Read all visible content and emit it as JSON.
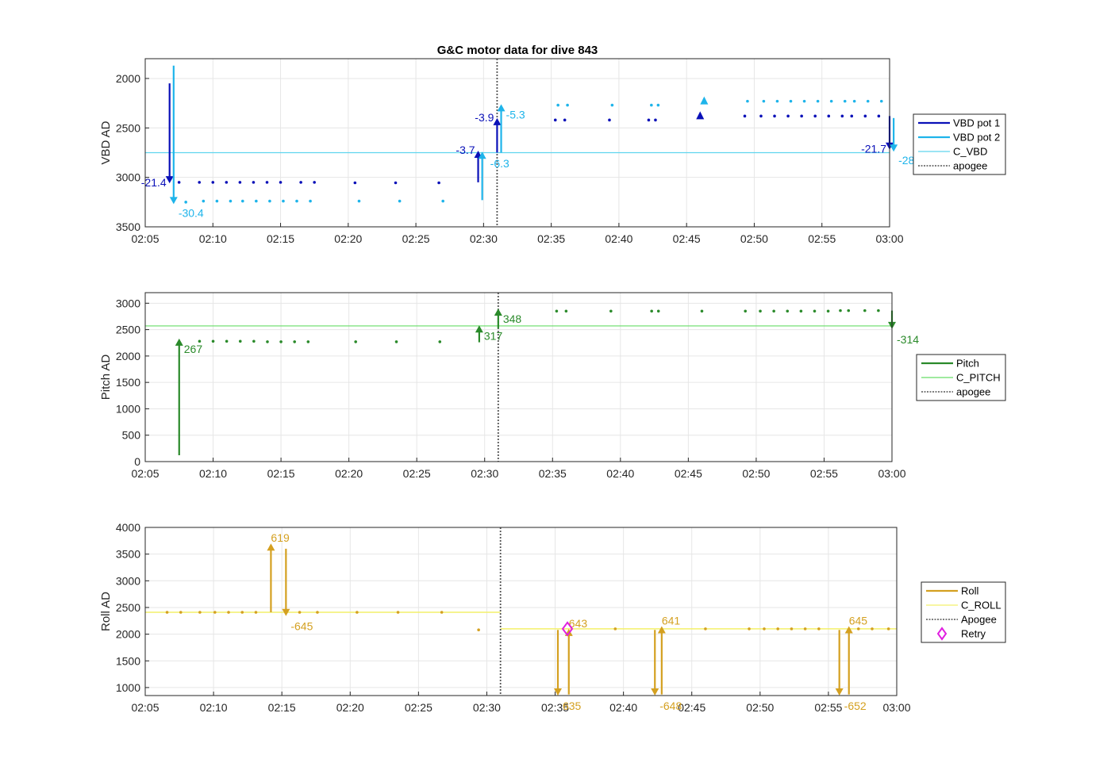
{
  "title": "G&C motor data for dive 843",
  "colors": {
    "vbd1": "#0a10b8",
    "vbd2": "#1eb4ea",
    "c_vbd": "#5fd5ee",
    "pitch": "#2a8a2a",
    "c_pitch": "#66dd66",
    "roll": "#d4a020",
    "c_roll": "#f4f06a",
    "apogee": "#555555",
    "retry": "#e020e0",
    "grid": "#e6e6e6",
    "axis": "#262626"
  },
  "chart_data": [
    {
      "type": "line",
      "id": "vbd",
      "ylabel": "VBD AD",
      "xlim": [
        "02:05",
        "03:00"
      ],
      "ylim": [
        3500,
        1800
      ],
      "y_reversed": true,
      "grid": true,
      "xticks": [
        "02:05",
        "02:10",
        "02:15",
        "02:20",
        "02:25",
        "02:30",
        "02:35",
        "02:40",
        "02:45",
        "02:50",
        "02:55",
        "03:00"
      ],
      "yticks": [
        2000,
        2500,
        3000,
        3500
      ],
      "apogee": "02:31",
      "legend_position": "outside-right",
      "legend": [
        {
          "label": "VBD pot 1",
          "style": "thick",
          "color": "#0a10b8"
        },
        {
          "label": "VBD pot 2",
          "style": "thick",
          "color": "#1eb4ea"
        },
        {
          "label": "C_VBD",
          "style": "thin",
          "color": "#5fd5ee"
        },
        {
          "label": "apogee",
          "style": "dotted",
          "color": "#555555"
        }
      ],
      "hlines": [
        {
          "name": "C_VBD",
          "y": 2750,
          "color": "#5fd5ee"
        }
      ],
      "series": [
        {
          "name": "VBD pot 1",
          "color": "#0a10b8",
          "x": [
            "02:07.5",
            "02:09",
            "02:10",
            "02:11",
            "02:12",
            "02:13",
            "02:14",
            "02:15",
            "02:16.5",
            "02:17.5",
            "02:20.5",
            "02:23.5",
            "02:26.7",
            "02:35.3",
            "02:36",
            "02:39.3",
            "02:42.2",
            "02:42.7",
            "02:49.3",
            "02:50.5",
            "02:51.5",
            "02:52.5",
            "02:53.5",
            "02:54.5",
            "02:55.5",
            "02:56.5",
            "02:57.2",
            "02:58.2",
            "02:59.2"
          ],
          "y": [
            3050,
            3050,
            3050,
            3050,
            3050,
            3050,
            3050,
            3050,
            3050,
            3050,
            3055,
            3055,
            3055,
            2420,
            2420,
            2420,
            2420,
            2420,
            2380,
            2380,
            2380,
            2380,
            2380,
            2380,
            2380,
            2380,
            2380,
            2380,
            2380
          ]
        },
        {
          "name": "VBD pot 2",
          "color": "#1eb4ea",
          "x": [
            "02:08",
            "02:09.3",
            "02:10.3",
            "02:11.3",
            "02:12.2",
            "02:13.2",
            "02:14.2",
            "02:15.2",
            "02:16.2",
            "02:17.2",
            "02:20.8",
            "02:23.8",
            "02:27",
            "02:35.5",
            "02:36.2",
            "02:39.5",
            "02:42.4",
            "02:42.9",
            "02:49.5",
            "02:50.7",
            "02:51.7",
            "02:52.7",
            "02:53.7",
            "02:54.7",
            "02:55.7",
            "02:56.7",
            "02:57.4",
            "02:58.4",
            "02:59.4"
          ],
          "y": [
            3250,
            3240,
            3240,
            3240,
            3240,
            3240,
            3240,
            3240,
            3240,
            3240,
            3240,
            3240,
            3240,
            2270,
            2270,
            2270,
            2270,
            2270,
            2230,
            2230,
            2230,
            2230,
            2230,
            2230,
            2230,
            2230,
            2230,
            2230,
            2230
          ]
        }
      ],
      "moves": [
        {
          "x": "02:06.8",
          "y0": 2050,
          "y1": 3060,
          "color": "#0a10b8",
          "label": "-21.4",
          "lpos": "left"
        },
        {
          "x": "02:07.1",
          "y0": 1870,
          "y1": 3270,
          "color": "#1eb4ea",
          "label": "-30.4",
          "lpos": "right"
        },
        {
          "x": "02:29.6",
          "y0": 3050,
          "y1": 2730,
          "color": "#0a10b8",
          "label": "-3.7",
          "lpos": "left"
        },
        {
          "x": "02:29.9",
          "y0": 3230,
          "y1": 2740,
          "color": "#1eb4ea",
          "label": "-6.3",
          "lpos": "below"
        },
        {
          "x": "02:31",
          "y0": 2750,
          "y1": 2400,
          "color": "#0a10b8",
          "label": "-3.9",
          "lpos": "left"
        },
        {
          "x": "02:31.3",
          "y0": 2750,
          "y1": 2260,
          "color": "#1eb4ea",
          "label": "-5.3",
          "lpos": "right"
        },
        {
          "x": "03:00",
          "y0": 2380,
          "y1": 2720,
          "color": "#0a10b8",
          "label": "-21.7",
          "lpos": "left"
        },
        {
          "x": "03:00.3",
          "y0": 2400,
          "y1": 2740,
          "color": "#1eb4ea",
          "label": "-28",
          "lpos": "right"
        }
      ],
      "markers": [
        {
          "x": "02:46",
          "y": 2380,
          "shape": "triangle-up",
          "color": "#0a10b8"
        },
        {
          "x": "02:46.3",
          "y": 2230,
          "shape": "triangle-up",
          "color": "#1eb4ea"
        }
      ]
    },
    {
      "type": "line",
      "id": "pitch",
      "ylabel": "Pitch AD",
      "xlim": [
        "02:05",
        "03:00"
      ],
      "ylim": [
        0,
        3200
      ],
      "grid": true,
      "xticks": [
        "02:05",
        "02:10",
        "02:15",
        "02:20",
        "02:25",
        "02:30",
        "02:35",
        "02:40",
        "02:45",
        "02:50",
        "02:55",
        "03:00"
      ],
      "yticks": [
        0,
        500,
        1000,
        1500,
        2000,
        2500,
        3000
      ],
      "apogee": "02:31",
      "legend_position": "outside-right",
      "legend": [
        {
          "label": "Pitch",
          "style": "thick",
          "color": "#2a8a2a"
        },
        {
          "label": "C_PITCH",
          "style": "thin",
          "color": "#66dd66"
        },
        {
          "label": "apogee",
          "style": "dotted",
          "color": "#555555"
        }
      ],
      "hlines": [
        {
          "name": "C_PITCH",
          "y": 2570,
          "color": "#66dd66"
        }
      ],
      "series": [
        {
          "name": "Pitch",
          "color": "#2a8a2a",
          "x": [
            "02:09",
            "02:10",
            "02:11",
            "02:12",
            "02:13",
            "02:14",
            "02:15",
            "02:16",
            "02:17",
            "02:20.5",
            "02:23.5",
            "02:26.7",
            "02:35.3",
            "02:36",
            "02:39.3",
            "02:42.3",
            "02:42.8",
            "02:46",
            "02:49.2",
            "02:50.3",
            "02:51.3",
            "02:52.3",
            "02:53.3",
            "02:54.3",
            "02:55.3",
            "02:56.2",
            "02:56.8",
            "02:58",
            "02:59"
          ],
          "y": [
            2280,
            2280,
            2280,
            2280,
            2280,
            2270,
            2270,
            2270,
            2270,
            2270,
            2270,
            2270,
            2850,
            2850,
            2850,
            2850,
            2850,
            2850,
            2850,
            2850,
            2850,
            2850,
            2850,
            2850,
            2850,
            2860,
            2860,
            2860,
            2860
          ]
        }
      ],
      "moves": [
        {
          "x": "02:07.5",
          "y0": 120,
          "y1": 2330,
          "color": "#2a8a2a",
          "label": "267",
          "lpos": "right-low"
        },
        {
          "x": "02:29.6",
          "y0": 2260,
          "y1": 2580,
          "color": "#2a8a2a",
          "label": "317",
          "lpos": "right-low"
        },
        {
          "x": "02:31",
          "y0": 2520,
          "y1": 2900,
          "color": "#2a8a2a",
          "label": "348",
          "lpos": "right-low"
        },
        {
          "x": "03:00",
          "y0": 2860,
          "y1": 2510,
          "color": "#2a8a2a",
          "label": "-314",
          "lpos": "right-low"
        }
      ],
      "markers": []
    },
    {
      "type": "line",
      "id": "roll",
      "ylabel": "Roll AD",
      "xlim": [
        "02:05",
        "03:00"
      ],
      "ylim": [
        850,
        4000
      ],
      "grid": true,
      "xticks": [
        "02:05",
        "02:10",
        "02:15",
        "02:20",
        "02:25",
        "02:30",
        "02:35",
        "02:40",
        "02:45",
        "02:50",
        "02:55",
        "03:00"
      ],
      "yticks": [
        1000,
        1500,
        2000,
        2500,
        3000,
        3500,
        4000
      ],
      "apogee": "02:31",
      "legend_position": "outside-right",
      "legend": [
        {
          "label": "Roll",
          "style": "thick",
          "color": "#d4a020"
        },
        {
          "label": "C_ROLL",
          "style": "thin",
          "color": "#f4f06a"
        },
        {
          "label": "Apogee",
          "style": "dotted",
          "color": "#555555"
        },
        {
          "label": "Retry",
          "style": "diamond",
          "color": "#e020e0"
        }
      ],
      "hsegments": [
        {
          "name": "C_ROLL",
          "x0": "02:05",
          "x1": "02:31",
          "y": 2410,
          "color": "#f4f06a"
        },
        {
          "name": "C_ROLL",
          "x0": "02:31",
          "x1": "03:00",
          "y": 2100,
          "color": "#f4f06a"
        }
      ],
      "series": [
        {
          "name": "Roll",
          "color": "#d4a020",
          "x": [
            "02:06.6",
            "02:07.6",
            "02:09",
            "02:10.1",
            "02:11.1",
            "02:12.1",
            "02:13.1",
            "02:16.3",
            "02:17.6",
            "02:20.5",
            "02:23.5",
            "02:26.7",
            "02:29.4",
            "02:39.4",
            "02:46",
            "02:49.2",
            "02:50.3",
            "02:51.3",
            "02:52.3",
            "02:53.3",
            "02:54.3",
            "02:57.2",
            "02:58.2",
            "02:59.4"
          ],
          "y": [
            2410,
            2410,
            2410,
            2410,
            2410,
            2410,
            2410,
            2410,
            2410,
            2410,
            2410,
            2410,
            2080,
            2100,
            2100,
            2100,
            2100,
            2100,
            2100,
            2100,
            2100,
            2100,
            2100,
            2100
          ]
        }
      ],
      "moves": [
        {
          "x": "02:14.2",
          "y0": 2410,
          "y1": 3700,
          "color": "#d4a020",
          "label": "619",
          "lpos": "right-up"
        },
        {
          "x": "02:15.3",
          "y0": 3600,
          "y1": 2340,
          "color": "#d4a020",
          "label": "-645",
          "lpos": "right-low"
        },
        {
          "x": "02:35.2",
          "y0": 2080,
          "y1": 850,
          "color": "#d4a020",
          "label": "635",
          "lpos": "right-low"
        },
        {
          "x": "02:36",
          "y0": 870,
          "y1": 2100,
          "color": "#d4a020",
          "label": "643",
          "lpos": "right-up"
        },
        {
          "x": "02:42.3",
          "y0": 2080,
          "y1": 850,
          "color": "#d4a020",
          "label": "-648",
          "lpos": "right-low"
        },
        {
          "x": "02:42.8",
          "y0": 870,
          "y1": 2150,
          "color": "#d4a020",
          "label": "641",
          "lpos": "right-up"
        },
        {
          "x": "02:55.8",
          "y0": 2080,
          "y1": 850,
          "color": "#d4a020",
          "label": "-652",
          "lpos": "right-low"
        },
        {
          "x": "02:56.5",
          "y0": 870,
          "y1": 2150,
          "color": "#d4a020",
          "label": "645",
          "lpos": "right-up"
        }
      ],
      "markers": [
        {
          "x": "02:35.9",
          "y": 2100,
          "shape": "diamond",
          "color": "#e020e0"
        }
      ]
    }
  ]
}
